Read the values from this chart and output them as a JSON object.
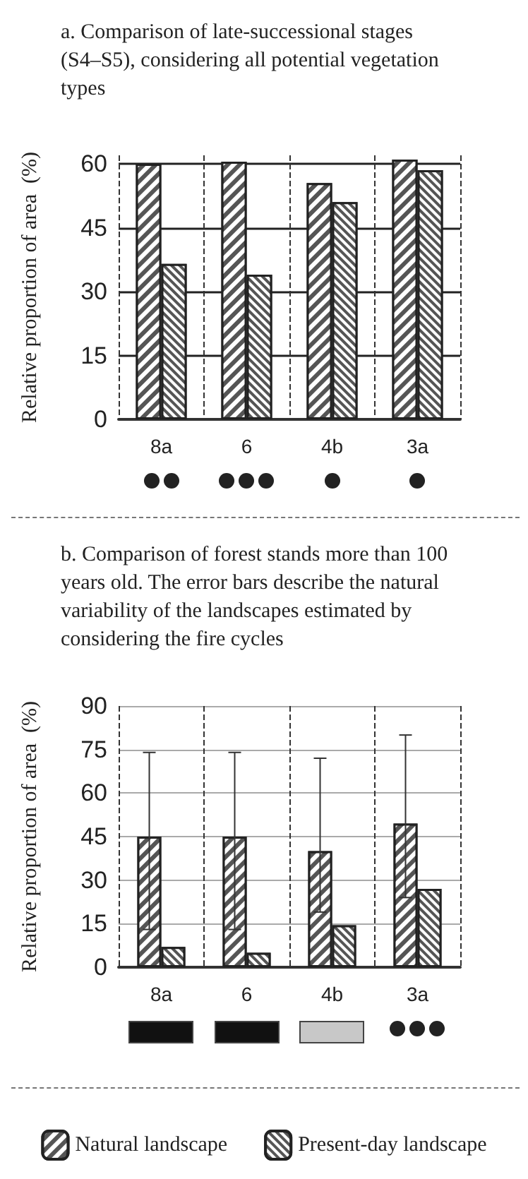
{
  "chart_data": [
    {
      "type": "bar",
      "title": "a. Comparison of late-successional stages (S4–S5), considering all potential vegetation types",
      "ylabel": "Relative proportion of area  (%)",
      "categories": [
        "8a",
        "6",
        "4b",
        "3a"
      ],
      "series": [
        {
          "color": "#555555",
          "values": [
            60,
            60.5,
            55.5,
            61
          ]
        },
        {
          "color": "#555555",
          "values": [
            36.5,
            34,
            51,
            58.5
          ]
        }
      ],
      "ylim": [
        0,
        62
      ],
      "yticks": [
        0,
        15,
        30,
        45,
        60
      ],
      "grid": true,
      "legend": false
    },
    {
      "type": "bar",
      "title": "b. Comparison of forest stands more than 100 years old. The error bars describe the natural variability of the landscapes estimated by considering the fire cycles",
      "ylabel": "Relative proportion of area  (%)",
      "categories": [
        "8a",
        "6",
        "4b",
        "3a"
      ],
      "series": [
        {
          "name": "Natural landscape",
          "color": "#555555",
          "values": [
            45,
            45,
            40,
            49.5
          ],
          "errors": [
            [
              13,
              74
            ],
            [
              13,
              74
            ],
            [
              19,
              72
            ],
            [
              24,
              80
            ]
          ]
        },
        {
          "name": "Present-day landscape",
          "color": "#555555",
          "values": [
            7,
            5,
            14.5,
            27
          ]
        }
      ],
      "ylim": [
        0,
        90
      ],
      "yticks": [
        0,
        15,
        30,
        45,
        60,
        75,
        90
      ],
      "grid": true,
      "legend": "bottom"
    }
  ]
}
